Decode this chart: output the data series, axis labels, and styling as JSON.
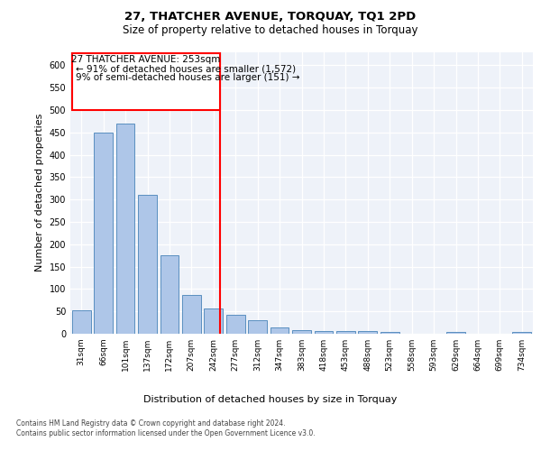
{
  "title": "27, THATCHER AVENUE, TORQUAY, TQ1 2PD",
  "subtitle": "Size of property relative to detached houses in Torquay",
  "xlabel": "Distribution of detached houses by size in Torquay",
  "ylabel": "Number of detached properties",
  "categories": [
    "31sqm",
    "66sqm",
    "101sqm",
    "137sqm",
    "172sqm",
    "207sqm",
    "242sqm",
    "277sqm",
    "312sqm",
    "347sqm",
    "383sqm",
    "418sqm",
    "453sqm",
    "488sqm",
    "523sqm",
    "558sqm",
    "593sqm",
    "629sqm",
    "664sqm",
    "699sqm",
    "734sqm"
  ],
  "values": [
    53,
    450,
    470,
    310,
    175,
    87,
    57,
    42,
    30,
    15,
    9,
    7,
    7,
    6,
    5,
    0,
    0,
    4,
    0,
    0,
    4
  ],
  "bar_color": "#aec6e8",
  "bar_edge_color": "#5a8fc0",
  "annotation_line1": "27 THATCHER AVENUE: 253sqm",
  "annotation_line2": "← 91% of detached houses are smaller (1,572)",
  "annotation_line3": "9% of semi-detached houses are larger (151) →",
  "ylim": [
    0,
    630
  ],
  "yticks": [
    0,
    50,
    100,
    150,
    200,
    250,
    300,
    350,
    400,
    450,
    500,
    550,
    600
  ],
  "background_color": "#eef2f9",
  "grid_color": "#ffffff",
  "footer_line1": "Contains HM Land Registry data © Crown copyright and database right 2024.",
  "footer_line2": "Contains public sector information licensed under the Open Government Licence v3.0."
}
